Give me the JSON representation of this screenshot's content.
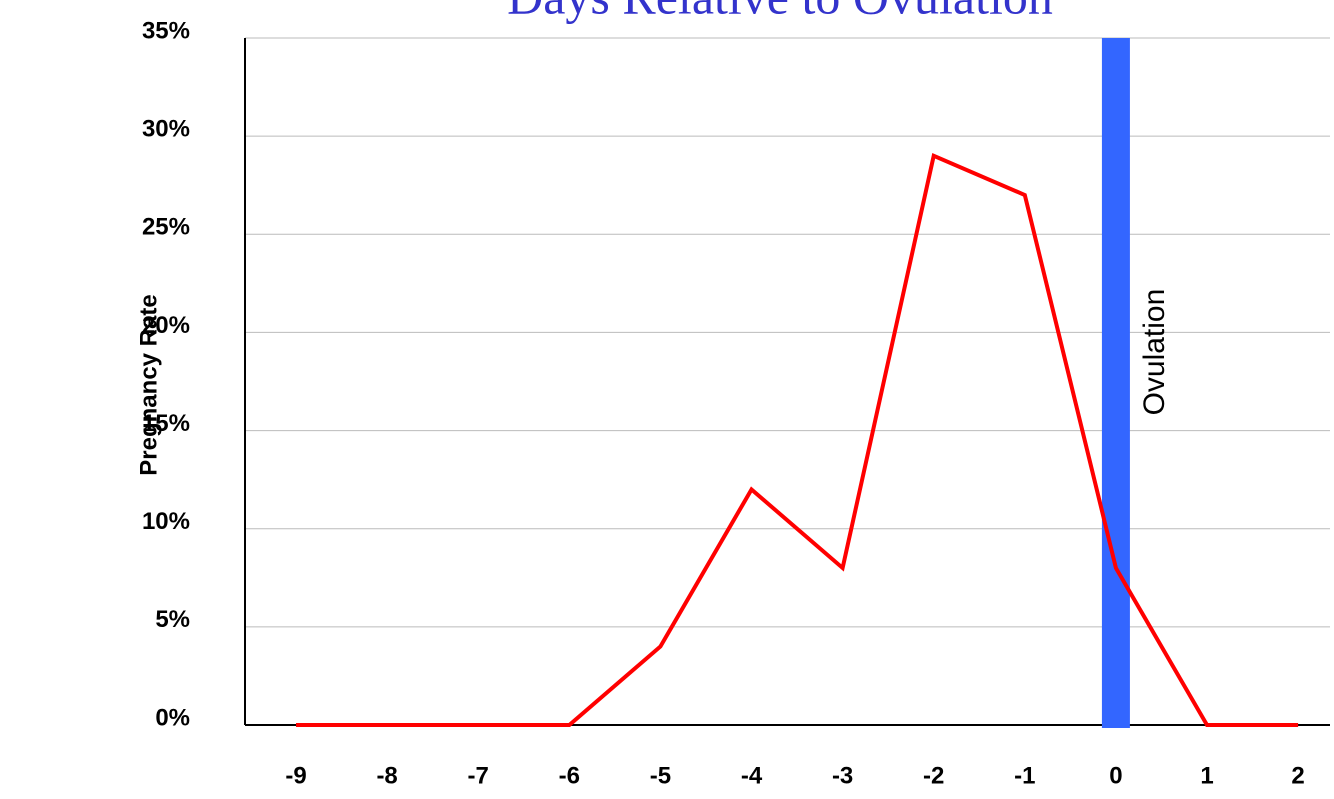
{
  "chart_data": {
    "type": "line",
    "title": "Days Relative to Ovulation",
    "y_label": "Pregnancy Rate",
    "x": [
      -9,
      -8,
      -7,
      -6,
      -5,
      -4,
      -3,
      -2,
      -1,
      0,
      1,
      2
    ],
    "series": [
      {
        "name": "Pregnancy Rate",
        "color": "#ff0000",
        "values": [
          0,
          0,
          0,
          0,
          4,
          12,
          8,
          29,
          27,
          8,
          0,
          0
        ]
      }
    ],
    "xlim": [
      -9.56,
      2.35
    ],
    "xticks": [
      -9,
      -8,
      -7,
      -6,
      -5,
      -4,
      -3,
      -2,
      -1,
      0,
      1,
      2
    ],
    "ylim": [
      0,
      35
    ],
    "yticks": [
      {
        "value": 0,
        "label": "0%"
      },
      {
        "value": 5,
        "label": "5%"
      },
      {
        "value": 10,
        "label": "10%"
      },
      {
        "value": 15,
        "label": "15%"
      },
      {
        "value": 20,
        "label": "20%"
      },
      {
        "value": 25,
        "label": "25%"
      },
      {
        "value": 30,
        "label": "30%"
      },
      {
        "value": 35,
        "label": "35%"
      }
    ],
    "grid": true,
    "annotations": [
      {
        "text": "Ovulation",
        "x": 0,
        "color": "#3366ff"
      }
    ]
  }
}
